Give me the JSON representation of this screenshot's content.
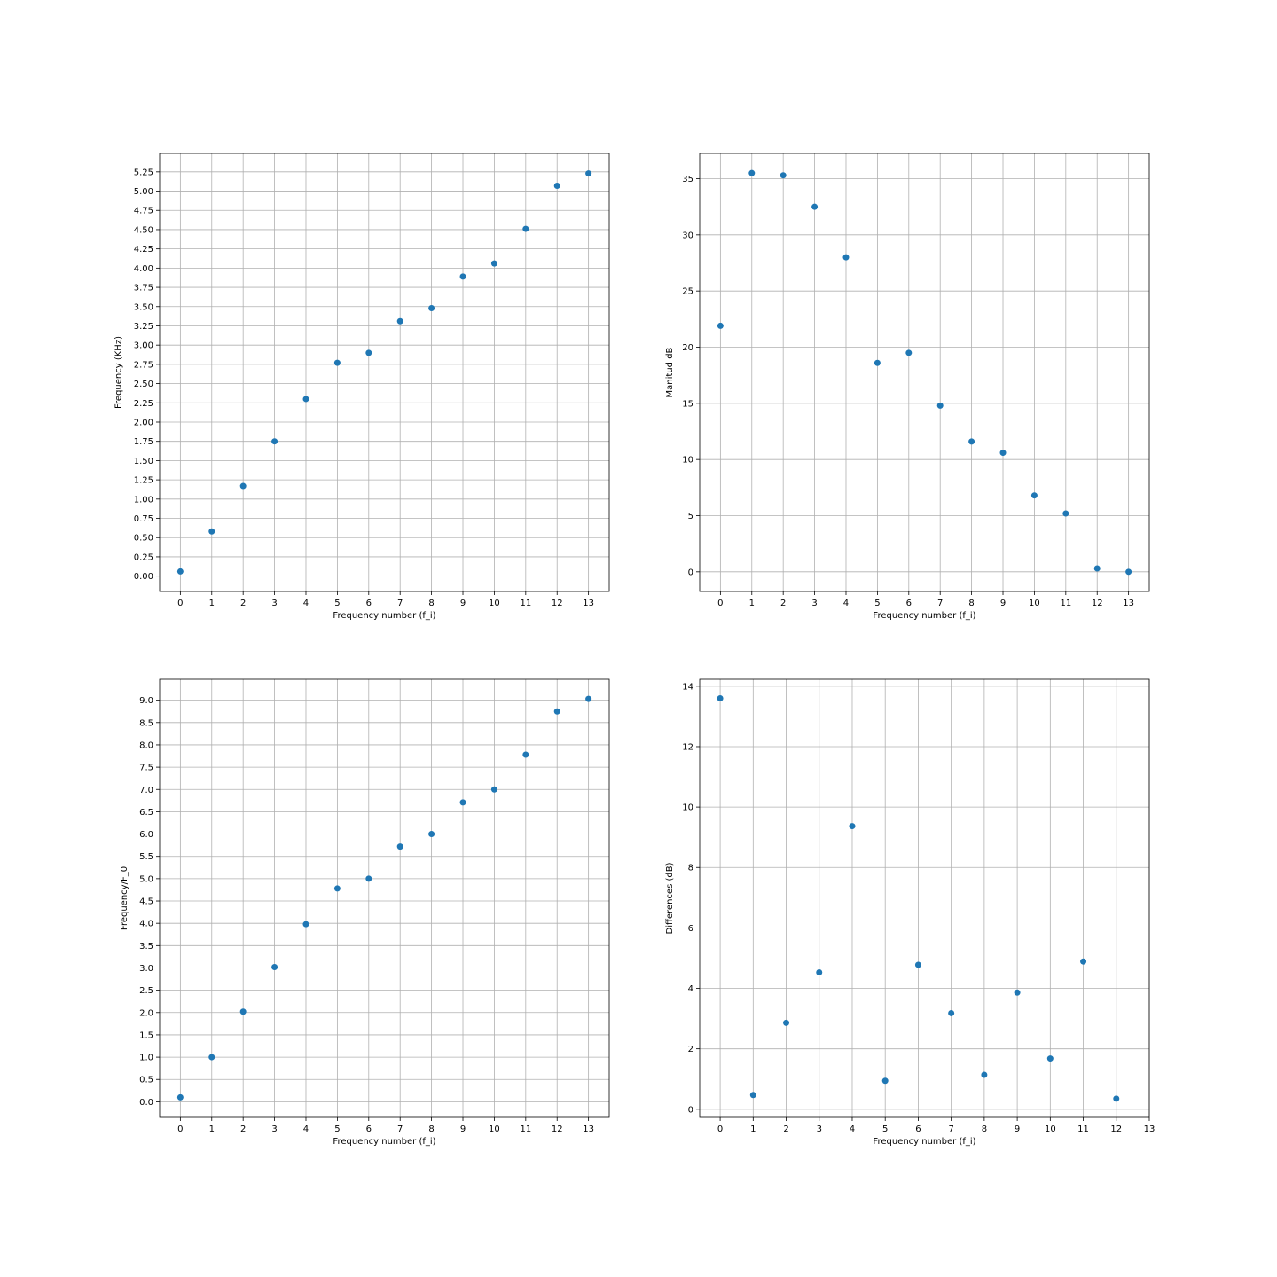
{
  "chart_data": [
    {
      "type": "scatter",
      "xlabel": "Frequency number (f_i)",
      "ylabel": "Frequency (KHz)",
      "x": [
        0,
        1,
        2,
        3,
        4,
        5,
        6,
        7,
        8,
        9,
        10,
        11,
        12,
        13
      ],
      "y": [
        0.06,
        0.58,
        1.17,
        1.75,
        2.3,
        2.77,
        2.9,
        3.31,
        3.48,
        3.89,
        4.06,
        4.51,
        5.07,
        5.23
      ],
      "xticks": [
        0,
        1,
        2,
        3,
        4,
        5,
        6,
        7,
        8,
        9,
        10,
        11,
        12,
        13
      ],
      "yticks": [
        "0.00",
        "0.25",
        "0.50",
        "0.75",
        "1.00",
        "1.25",
        "1.50",
        "1.75",
        "2.00",
        "2.25",
        "2.50",
        "2.75",
        "3.00",
        "3.25",
        "3.50",
        "3.75",
        "4.00",
        "4.25",
        "4.50",
        "4.75",
        "5.00",
        "5.25"
      ],
      "xlim": [
        -0.66,
        13.66
      ],
      "ylim": [
        -0.2,
        5.49
      ],
      "grid": true,
      "color": "#1f77b4"
    },
    {
      "type": "scatter",
      "xlabel": "Frequency number (f_i)",
      "ylabel": "Manitud dB",
      "x": [
        0,
        1,
        2,
        3,
        4,
        5,
        6,
        7,
        8,
        9,
        10,
        11,
        12,
        13
      ],
      "y": [
        21.9,
        35.5,
        35.3,
        32.5,
        28.0,
        18.6,
        19.5,
        14.8,
        11.6,
        10.6,
        6.8,
        5.2,
        0.3,
        0.0
      ],
      "xticks": [
        0,
        1,
        2,
        3,
        4,
        5,
        6,
        7,
        8,
        9,
        10,
        11,
        12,
        13
      ],
      "yticks": [
        "0",
        "5",
        "10",
        "15",
        "20",
        "25",
        "30",
        "35"
      ],
      "xlim": [
        -0.66,
        13.66
      ],
      "ylim": [
        -1.75,
        37.25
      ],
      "grid": true,
      "color": "#1f77b4"
    },
    {
      "type": "scatter",
      "xlabel": "Frequency number (f_i)",
      "ylabel": "Frequency/F_0",
      "x": [
        0,
        1,
        2,
        3,
        4,
        5,
        6,
        7,
        8,
        9,
        10,
        11,
        12,
        13
      ],
      "y": [
        0.1,
        1.0,
        2.02,
        3.02,
        3.98,
        4.78,
        5.0,
        5.72,
        6.0,
        6.71,
        7.0,
        7.78,
        8.75,
        9.03
      ],
      "xticks": [
        0,
        1,
        2,
        3,
        4,
        5,
        6,
        7,
        8,
        9,
        10,
        11,
        12,
        13
      ],
      "yticks": [
        "0.0",
        "0.5",
        "1.0",
        "1.5",
        "2.0",
        "2.5",
        "3.0",
        "3.5",
        "4.0",
        "4.5",
        "5.0",
        "5.5",
        "6.0",
        "6.5",
        "7.0",
        "7.5",
        "8.0",
        "8.5",
        "9.0"
      ],
      "xlim": [
        -0.66,
        13.66
      ],
      "ylim": [
        -0.35,
        9.47
      ],
      "grid": true,
      "color": "#1f77b4"
    },
    {
      "type": "scatter",
      "xlabel": "Frequency number (f_i)",
      "ylabel": "Differences (dB)",
      "x": [
        0,
        1,
        2,
        3,
        4,
        5,
        6,
        7,
        8,
        9,
        10,
        11,
        12
      ],
      "y": [
        13.6,
        0.47,
        2.86,
        4.53,
        9.37,
        0.94,
        4.78,
        3.18,
        1.14,
        3.86,
        1.68,
        4.89,
        0.35
      ],
      "xticks": [
        0,
        1,
        2,
        3,
        4,
        5,
        6,
        7,
        8,
        9,
        10,
        11,
        12,
        13
      ],
      "yticks": [
        "0",
        "2",
        "4",
        "6",
        "8",
        "10",
        "12",
        "14"
      ],
      "xlim": [
        -0.62,
        13.0
      ],
      "ylim": [
        -0.27,
        14.23
      ],
      "grid": true,
      "color": "#1f77b4"
    }
  ]
}
